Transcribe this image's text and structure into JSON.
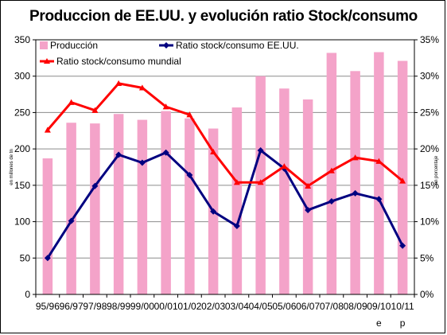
{
  "chart_data": {
    "type": "bar",
    "title": "Produccion de EE.UU. y evolución ratio Stock/consumo",
    "categories": [
      "95/96",
      "96/97",
      "97/98",
      "98/99",
      "99/00",
      "00/01",
      "01/02",
      "02/03",
      "03/04",
      "04/05",
      "05/06",
      "06/07",
      "07/08",
      "08/09",
      "09/10",
      "10/11"
    ],
    "category_sublabels": [
      "",
      "",
      "",
      "",
      "",
      "",
      "",
      "",
      "",
      "",
      "",
      "",
      "",
      "",
      "e",
      "p"
    ],
    "ylabel": "en millones de tn",
    "y2label": "en porcentaje",
    "ylim": [
      0,
      350
    ],
    "yticks": [
      0,
      50,
      100,
      150,
      200,
      250,
      300,
      350
    ],
    "y2lim": [
      0,
      35
    ],
    "y2ticks": [
      "0%",
      "5%",
      "10%",
      "15%",
      "20%",
      "25%",
      "30%",
      "35%"
    ],
    "grid": "horizontal",
    "legend_position": "top",
    "series": [
      {
        "name": "Producción",
        "type": "bar",
        "axis": "left",
        "color": "#f4a3c9",
        "values": [
          187,
          236,
          235,
          248,
          240,
          252,
          242,
          228,
          257,
          300,
          283,
          268,
          332,
          307,
          333,
          321
        ]
      },
      {
        "name": "Ratio stock/consumo EE.UU.",
        "type": "line",
        "axis": "right",
        "color": "#000080",
        "marker": "diamond",
        "values": [
          5.0,
          10.1,
          14.9,
          19.2,
          18.1,
          19.5,
          16.4,
          11.4,
          9.4,
          19.8,
          17.3,
          11.6,
          12.8,
          13.9,
          13.1,
          6.7
        ]
      },
      {
        "name": "Ratio stock/consumo mundial",
        "type": "line",
        "axis": "right",
        "color": "#ff0000",
        "marker": "triangle",
        "values": [
          22.6,
          26.4,
          25.3,
          29.0,
          28.4,
          25.8,
          24.7,
          19.6,
          15.4,
          15.4,
          17.6,
          14.9,
          17.0,
          18.8,
          18.3,
          15.6
        ]
      }
    ]
  }
}
